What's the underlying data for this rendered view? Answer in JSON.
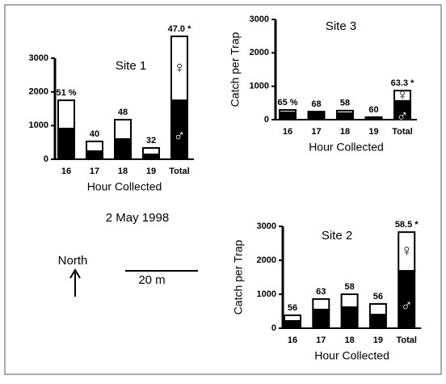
{
  "date": "2 May 1998",
  "north": "North",
  "scale": "20 m",
  "chart_data": [
    {
      "type": "bar",
      "title": "Site  1",
      "xlabel": "Hour Collected",
      "categories": [
        "16",
        "17",
        "18",
        "19",
        "Total"
      ],
      "series": [
        {
          "name": "♂",
          "color": "#000000",
          "values": [
            910,
            240,
            600,
            145,
            1750
          ]
        },
        {
          "name": "♀",
          "color": "#ffffff",
          "values": [
            840,
            290,
            575,
            190,
            1900
          ]
        }
      ],
      "annotations": [
        "51 %",
        "40",
        "48",
        "32",
        "47.0 *"
      ],
      "ylim": [
        0,
        3000
      ],
      "yticks": [
        0,
        1000,
        2000,
        3000
      ]
    },
    {
      "type": "bar",
      "title": "Site  3",
      "ylabel": "Catch  per  Trap",
      "xlabel": "Hour Collected",
      "categories": [
        "16",
        "17",
        "18",
        "19",
        "Total"
      ],
      "series": [
        {
          "name": "♂",
          "color": "#000000",
          "values": [
            220,
            195,
            195,
            50,
            560
          ]
        },
        {
          "name": "♀",
          "color": "#ffffff",
          "values": [
            70,
            45,
            75,
            25,
            310
          ]
        }
      ],
      "annotations": [
        "65 %",
        "68",
        "58",
        "60",
        "63.3 *"
      ],
      "ylim": [
        0,
        3000
      ],
      "yticks": [
        0,
        1000,
        2000,
        3000
      ]
    },
    {
      "type": "bar",
      "title": "Site  2",
      "ylabel": "Catch  per  Trap",
      "xlabel": "Hour Collected",
      "categories": [
        "16",
        "17",
        "18",
        "19",
        "Total"
      ],
      "series": [
        {
          "name": "♂",
          "color": "#000000",
          "values": [
            215,
            550,
            620,
            400,
            1690
          ]
        },
        {
          "name": "♀",
          "color": "#ffffff",
          "values": [
            165,
            310,
            380,
            315,
            1140
          ]
        }
      ],
      "annotations": [
        "56",
        "63",
        "58",
        "56",
        "58.5 *"
      ],
      "ylim": [
        0,
        3000
      ],
      "yticks": [
        0,
        1000,
        2000,
        3000
      ]
    }
  ]
}
